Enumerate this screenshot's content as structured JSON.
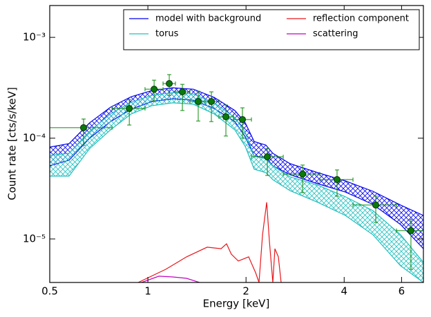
{
  "chart_data": {
    "type": "line",
    "xlabel": "Energy [keV]",
    "ylabel": "Count rate [cts/s/keV]",
    "xscale": "log",
    "yscale": "log",
    "xlim": [
      0.5,
      7.0
    ],
    "ylim": [
      3.7e-06,
      0.00207
    ],
    "xticks": [
      0.5,
      1,
      2,
      4,
      6
    ],
    "yticks": [
      {
        "value": 1e-05,
        "label": "10⁻⁵"
      },
      {
        "value": 0.0001,
        "label": "10⁻⁴"
      },
      {
        "value": 0.001,
        "label": "10⁻³"
      }
    ],
    "legend": "upper right",
    "legend_columns": 2,
    "series": [
      {
        "name": "model with background",
        "color": "#0000ee",
        "style": "band",
        "x": [
          0.5,
          0.573,
          0.663,
          0.768,
          0.889,
          1.029,
          1.192,
          1.379,
          1.597,
          1.848,
          1.989,
          2.119,
          2.302,
          2.417,
          2.731,
          3.318,
          4.035,
          4.9,
          5.96,
          7.0
        ],
        "upper": [
          8.15e-05,
          8.82e-05,
          0.000142,
          0.000203,
          0.000258,
          0.000297,
          0.000316,
          0.000306,
          0.000254,
          0.000188,
          0.000142,
          9.25e-05,
          8.54e-05,
          7.07e-05,
          5.58e-05,
          4.55e-05,
          3.76e-05,
          2.97e-05,
          2.17e-05,
          1.71e-05
        ],
        "lower": [
          5.32e-05,
          6.04e-05,
          0.0001,
          0.000146,
          0.000194,
          0.000231,
          0.000246,
          0.000238,
          0.000197,
          0.000146,
          0.000103,
          6.64e-05,
          6.43e-05,
          5.32e-05,
          4.34e-05,
          3.53e-05,
          2.92e-05,
          2.2e-05,
          1.39e-05,
          8e-06
        ]
      },
      {
        "name": "torus",
        "color": "#20bfbf",
        "style": "band",
        "x": [
          0.5,
          0.573,
          0.663,
          0.768,
          0.889,
          1.029,
          1.192,
          1.379,
          1.597,
          1.848,
          1.989,
          2.119,
          2.302,
          2.417,
          2.731,
          3.318,
          4.035,
          4.9,
          5.96,
          7.0
        ],
        "upper": [
          6.75e-05,
          7.07e-05,
          0.000117,
          0.000174,
          0.000227,
          0.000266,
          0.000283,
          0.000274,
          0.000224,
          0.00016,
          0.000114,
          6.64e-05,
          6.23e-05,
          5.32e-05,
          4.13e-05,
          3.42e-05,
          2.62e-05,
          1.91e-05,
          1.1e-05,
          5.85e-06
        ],
        "lower": [
          4.2e-05,
          4.2e-05,
          7.89e-05,
          0.000121,
          0.000174,
          0.00021,
          0.000224,
          0.000217,
          0.000174,
          0.000121,
          8.28e-05,
          4.92e-05,
          4.55e-05,
          3.88e-05,
          3.01e-05,
          2.31e-05,
          1.71e-05,
          1.1e-05,
          5.41e-06,
          3.7e-06
        ]
      },
      {
        "name": "reflection component",
        "color": "#e8161b",
        "style": "line",
        "x": [
          0.934,
          1.135,
          1.314,
          1.52,
          1.677,
          1.743,
          1.803,
          1.894,
          2.038,
          2.14,
          2.192,
          2.247,
          2.314,
          2.36,
          2.417,
          2.452,
          2.513,
          2.562
        ],
        "values": [
          3.7e-06,
          5e-06,
          6.64e-06,
          8.28e-06,
          8e-06,
          8.95e-06,
          7.07e-06,
          6.04e-06,
          6.64e-06,
          4.62e-06,
          3.7e-06,
          1.1e-05,
          2.31e-05,
          9.4e-06,
          3.7e-06,
          8e-06,
          6.64e-06,
          3.7e-06
        ]
      },
      {
        "name": "scattering",
        "color": "#c000c0",
        "style": "line",
        "x": [
          0.911,
          1.081,
          1.192,
          1.314,
          1.52
        ],
        "values": [
          3.5e-06,
          4.27e-06,
          4.2e-06,
          4.07e-06,
          3.5e-06
        ]
      }
    ],
    "points": {
      "color": "#0a8a0a",
      "x": [
        0.635,
        0.877,
        1.045,
        1.163,
        1.276,
        1.427,
        1.566,
        1.735,
        1.95,
        2.325,
        2.982,
        3.804,
        5.0,
        6.41
      ],
      "values": [
        0.000127,
        0.000197,
        0.000306,
        0.000348,
        0.000288,
        0.000231,
        0.000231,
        0.000163,
        0.000153,
        6.53e-05,
        4.41e-05,
        3.88e-05,
        2.17e-05,
        1.21e-05
      ],
      "x_low": [
        0.5,
        0.776,
        0.98,
        1.113,
        1.215,
        1.346,
        1.499,
        1.652,
        1.83,
        2.078,
        2.601,
        3.367,
        4.257,
        5.79
      ],
      "x_high": [
        0.776,
        0.98,
        1.113,
        1.215,
        1.346,
        1.499,
        1.652,
        1.83,
        2.078,
        2.601,
        3.367,
        4.257,
        5.79,
        7.0
      ],
      "y_low": [
        8.5e-05,
        0.000135,
        0.000234,
        0.000266,
        0.000188,
        0.000148,
        0.000146,
        0.000105,
        0.0001,
        4.27e-05,
        2.88e-05,
        2.66e-05,
        1.46e-05,
        5e-06
      ],
      "y_high": [
        0.000155,
        0.000242,
        0.000376,
        0.000427,
        0.000342,
        0.000292,
        0.000288,
        0.000213,
        0.0002,
        7.89e-05,
        5.41e-05,
        4.84e-05,
        2.66e-05,
        1.56e-05
      ]
    }
  }
}
